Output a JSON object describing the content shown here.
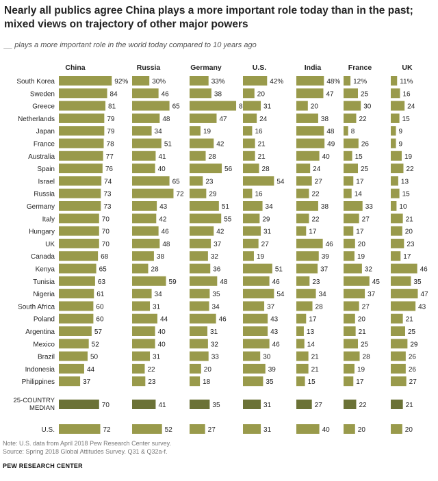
{
  "title": "Nearly all publics agree China plays a more important role today than in the past; mixed views on trajectory of other major powers",
  "subtitle": "__ plays a more important role in the world today compared to 10 years ago",
  "notes": [
    "Note: U.S. data from April 2018 Pew Research Center survey.",
    "Source: Spring 2018 Global Attitudes Survey. Q31 & Q32a-f."
  ],
  "brand": "PEW RESEARCH CENTER",
  "colors": {
    "bar": "#999a4b",
    "median_bar": "#6b7236",
    "text": "#222222"
  },
  "chart_data": {
    "type": "bar",
    "orientation": "horizontal",
    "xlim": [
      0,
      100
    ],
    "series_names": [
      "China",
      "Russia",
      "Germany",
      "U.S.",
      "India",
      "France",
      "UK"
    ],
    "rows": [
      {
        "country": "South Korea",
        "values": [
          92,
          30,
          33,
          42,
          48,
          12,
          11
        ],
        "labels": [
          "92%",
          "30%",
          "33%",
          "42%",
          "48%",
          "12%",
          "11%"
        ]
      },
      {
        "country": "Sweden",
        "values": [
          84,
          46,
          38,
          20,
          47,
          25,
          16
        ],
        "labels": [
          "84",
          "46",
          "38",
          "20",
          "47",
          "25",
          "16"
        ]
      },
      {
        "country": "Greece",
        "values": [
          81,
          65,
          81,
          31,
          20,
          30,
          24
        ],
        "labels": [
          "81",
          "65",
          "81",
          "31",
          "20",
          "30",
          "24"
        ]
      },
      {
        "country": "Netherlands",
        "values": [
          79,
          48,
          47,
          24,
          38,
          22,
          15
        ],
        "labels": [
          "79",
          "48",
          "47",
          "24",
          "38",
          "22",
          "15"
        ]
      },
      {
        "country": "Japan",
        "values": [
          79,
          34,
          19,
          16,
          48,
          8,
          9
        ],
        "labels": [
          "79",
          "34",
          "19",
          "16",
          "48",
          "8",
          "9"
        ]
      },
      {
        "country": "France",
        "values": [
          78,
          51,
          42,
          21,
          49,
          26,
          9
        ],
        "labels": [
          "78",
          "51",
          "42",
          "21",
          "49",
          "26",
          "9"
        ]
      },
      {
        "country": "Australia",
        "values": [
          77,
          41,
          28,
          21,
          40,
          15,
          19
        ],
        "labels": [
          "77",
          "41",
          "28",
          "21",
          "40",
          "15",
          "19"
        ]
      },
      {
        "country": "Spain",
        "values": [
          76,
          40,
          56,
          28,
          24,
          25,
          22
        ],
        "labels": [
          "76",
          "40",
          "56",
          "28",
          "24",
          "25",
          "22"
        ]
      },
      {
        "country": "Israel",
        "values": [
          74,
          65,
          23,
          54,
          27,
          17,
          13
        ],
        "labels": [
          "74",
          "65",
          "23",
          "54",
          "27",
          "17",
          "13"
        ]
      },
      {
        "country": "Russia",
        "values": [
          73,
          72,
          29,
          16,
          22,
          14,
          15
        ],
        "labels": [
          "73",
          "72",
          "29",
          "16",
          "22",
          "14",
          "15"
        ]
      },
      {
        "country": "Germany",
        "values": [
          73,
          43,
          51,
          34,
          38,
          33,
          10
        ],
        "labels": [
          "73",
          "43",
          "51",
          "34",
          "38",
          "33",
          "10"
        ]
      },
      {
        "country": "Italy",
        "values": [
          70,
          42,
          55,
          29,
          22,
          27,
          21
        ],
        "labels": [
          "70",
          "42",
          "55",
          "29",
          "22",
          "27",
          "21"
        ]
      },
      {
        "country": "Hungary",
        "values": [
          70,
          46,
          42,
          31,
          17,
          17,
          20
        ],
        "labels": [
          "70",
          "46",
          "42",
          "31",
          "17",
          "17",
          "20"
        ]
      },
      {
        "country": "UK",
        "values": [
          70,
          48,
          37,
          27,
          46,
          20,
          23
        ],
        "labels": [
          "70",
          "48",
          "37",
          "27",
          "46",
          "20",
          "23"
        ]
      },
      {
        "country": "Canada",
        "values": [
          68,
          38,
          32,
          19,
          39,
          19,
          17
        ],
        "labels": [
          "68",
          "38",
          "32",
          "19",
          "39",
          "19",
          "17"
        ]
      },
      {
        "country": "Kenya",
        "values": [
          65,
          28,
          36,
          51,
          37,
          32,
          46
        ],
        "labels": [
          "65",
          "28",
          "36",
          "51",
          "37",
          "32",
          "46"
        ]
      },
      {
        "country": "Tunisia",
        "values": [
          63,
          59,
          48,
          46,
          23,
          45,
          35
        ],
        "labels": [
          "63",
          "59",
          "48",
          "46",
          "23",
          "45",
          "35"
        ]
      },
      {
        "country": "Nigeria",
        "values": [
          61,
          34,
          35,
          54,
          34,
          37,
          47
        ],
        "labels": [
          "61",
          "34",
          "35",
          "54",
          "34",
          "37",
          "47"
        ]
      },
      {
        "country": "South Africa",
        "values": [
          60,
          31,
          34,
          37,
          28,
          27,
          43
        ],
        "labels": [
          "60",
          "31",
          "34",
          "37",
          "28",
          "27",
          "43"
        ]
      },
      {
        "country": "Poland",
        "values": [
          60,
          44,
          46,
          43,
          17,
          20,
          21
        ],
        "labels": [
          "60",
          "44",
          "46",
          "43",
          "17",
          "20",
          "21"
        ]
      },
      {
        "country": "Argentina",
        "values": [
          57,
          40,
          31,
          43,
          13,
          21,
          25
        ],
        "labels": [
          "57",
          "40",
          "31",
          "43",
          "13",
          "21",
          "25"
        ]
      },
      {
        "country": "Mexico",
        "values": [
          52,
          40,
          32,
          46,
          14,
          25,
          29
        ],
        "labels": [
          "52",
          "40",
          "32",
          "46",
          "14",
          "25",
          "29"
        ]
      },
      {
        "country": "Brazil",
        "values": [
          50,
          31,
          33,
          30,
          21,
          28,
          26
        ],
        "labels": [
          "50",
          "31",
          "33",
          "30",
          "21",
          "28",
          "26"
        ]
      },
      {
        "country": "Indonesia",
        "values": [
          44,
          22,
          20,
          39,
          21,
          19,
          26
        ],
        "labels": [
          "44",
          "22",
          "20",
          "39",
          "21",
          "19",
          "26"
        ]
      },
      {
        "country": "Philippines",
        "values": [
          37,
          23,
          18,
          35,
          15,
          17,
          27
        ],
        "labels": [
          "37",
          "23",
          "18",
          "35",
          "15",
          "17",
          "27"
        ]
      }
    ],
    "median": {
      "label": [
        "25-COUNTRY",
        "MEDIAN"
      ],
      "values": [
        70,
        41,
        35,
        31,
        27,
        22,
        21
      ],
      "labels": [
        "70",
        "41",
        "35",
        "31",
        "27",
        "22",
        "21"
      ]
    },
    "us": {
      "country": "U.S.",
      "values": [
        72,
        52,
        27,
        31,
        40,
        20,
        20
      ],
      "labels": [
        "72",
        "52",
        "27",
        "31",
        "40",
        "20",
        "20"
      ]
    }
  }
}
